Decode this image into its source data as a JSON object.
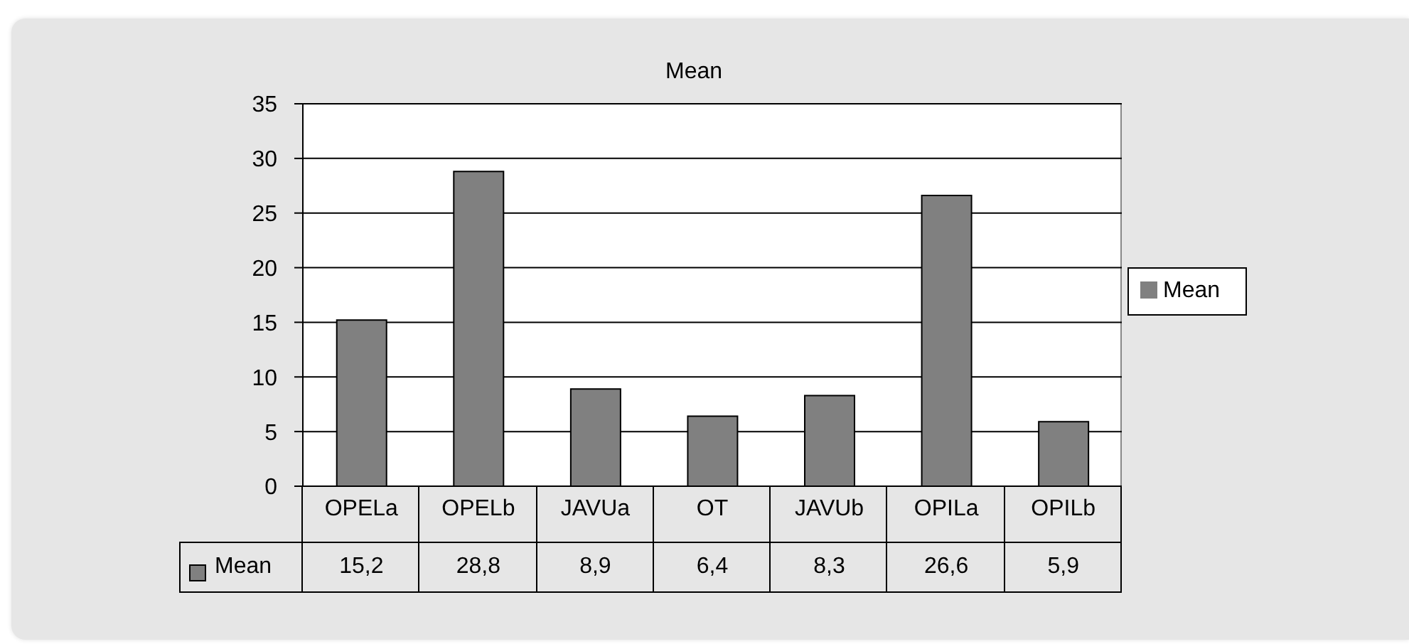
{
  "chart_data": {
    "type": "bar",
    "title": "Mean",
    "categories": [
      "OPELa",
      "OPELb",
      "JAVUa",
      "OT",
      "JAVUb",
      "OPILa",
      "OPILb"
    ],
    "series": [
      {
        "name": "Mean",
        "color": "#808080",
        "values": [
          15.2,
          28.8,
          8.9,
          6.4,
          8.3,
          26.6,
          5.9
        ],
        "value_labels": [
          "15,2",
          "28,8",
          "8,9",
          "6,4",
          "8,3",
          "26,6",
          "5,9"
        ]
      }
    ],
    "ylim": [
      0,
      35
    ],
    "yticks": [
      0,
      5,
      10,
      15,
      20,
      25,
      30,
      35
    ],
    "grid": "y",
    "legend": "right"
  }
}
